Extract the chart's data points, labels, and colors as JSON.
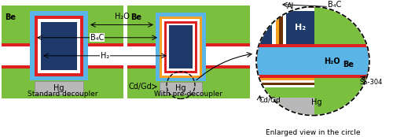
{
  "bg_color": "#ffffff",
  "green_bg": "#7bbf3e",
  "blue_light": "#5ab4e5",
  "blue_dark": "#1e3a6b",
  "red_color": "#e02020",
  "white_color": "#ffffff",
  "gray_color": "#b8b8b8",
  "orange_color": "#f5a020",
  "brown_color": "#6b3000",
  "caption1": "Standard decoupler",
  "caption2": "With pre-decoupler",
  "caption3": "Enlarged view in the circle",
  "label_Be": "Be",
  "label_H2O": "H₂O",
  "label_B4C": "B₄C",
  "label_H2": "H₂",
  "label_CdGd": "Cd/Gd",
  "label_Hg": "Hg",
  "label_Al": "Al",
  "label_SS304": "SS-304"
}
